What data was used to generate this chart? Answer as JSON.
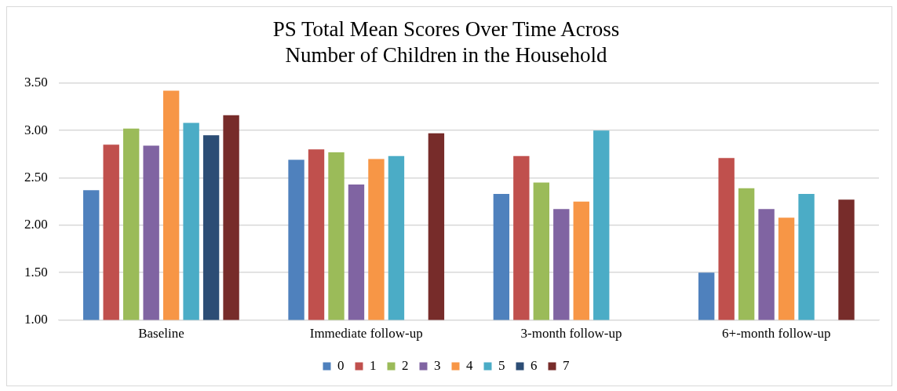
{
  "chart_data": {
    "type": "bar",
    "title": [
      "PS Total Mean Scores Over Time Across",
      "Number of Children in the Household"
    ],
    "categories": [
      "Baseline",
      "Immediate follow-up",
      "3-month follow-up",
      "6+-month follow-up"
    ],
    "series": [
      {
        "name": "0",
        "color": "#4f81bd",
        "values": [
          2.37,
          2.69,
          2.33,
          1.5
        ]
      },
      {
        "name": "1",
        "color": "#c0504d",
        "values": [
          2.85,
          2.8,
          2.73,
          2.71
        ]
      },
      {
        "name": "2",
        "color": "#9bbb59",
        "values": [
          3.02,
          2.77,
          2.45,
          2.39
        ]
      },
      {
        "name": "3",
        "color": "#8064a2",
        "values": [
          2.84,
          2.43,
          2.17,
          2.17
        ]
      },
      {
        "name": "4",
        "color": "#f79646",
        "values": [
          3.42,
          2.7,
          2.25,
          2.08
        ]
      },
      {
        "name": "5",
        "color": "#4bacc6",
        "values": [
          3.08,
          2.73,
          3.0,
          2.33
        ]
      },
      {
        "name": "6",
        "color": "#2c4d75",
        "values": [
          2.95,
          null,
          null,
          null
        ]
      },
      {
        "name": "7",
        "color": "#772c2a",
        "values": [
          3.16,
          2.97,
          null,
          2.27
        ]
      }
    ],
    "ylim": [
      1,
      3.5
    ],
    "yticks": [
      {
        "value": 1,
        "label": "1.00"
      },
      {
        "value": 1.5,
        "label": "1.50"
      },
      {
        "value": 2,
        "label": "2.00"
      },
      {
        "value": 2.5,
        "label": "2.50"
      },
      {
        "value": 3,
        "label": "3.00"
      },
      {
        "value": 3.5,
        "label": "3.50"
      }
    ],
    "grid": "y",
    "legend": "bottom"
  }
}
